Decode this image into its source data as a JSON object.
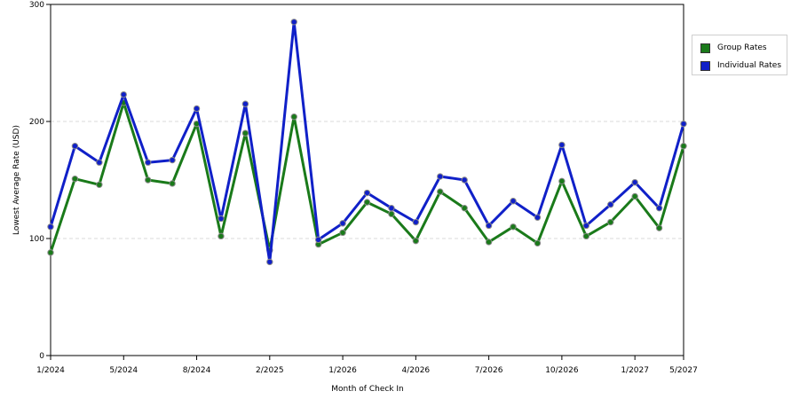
{
  "chart_data": {
    "type": "line",
    "xlabel": "Month of Check In",
    "ylabel": "Lowest Average Rate (USD)",
    "ylim": [
      0,
      300
    ],
    "yticks": [
      0,
      100,
      200,
      300
    ],
    "grid": true,
    "legend_position": "top-right",
    "x_tick_labels": [
      "1/2024",
      "5/2024",
      "8/2024",
      "2/2025",
      "1/2026",
      "4/2026",
      "7/2026",
      "10/2026",
      "1/2027",
      "5/2027"
    ],
    "x_tick_indices": [
      0,
      3,
      6,
      9,
      12,
      15,
      18,
      21,
      24,
      26
    ],
    "series": [
      {
        "name": "Group Rates",
        "color": "#1a7a1a",
        "values": [
          88,
          151,
          146,
          216,
          150,
          147,
          198,
          102,
          190,
          90,
          204,
          95,
          105,
          131,
          121,
          98,
          140,
          126,
          97,
          110,
          96,
          149,
          102,
          114,
          136,
          109,
          179
        ]
      },
      {
        "name": "Individual Rates",
        "color": "#1020c8",
        "values": [
          110,
          179,
          165,
          223,
          165,
          167,
          211,
          117,
          215,
          80,
          285,
          99,
          113,
          139,
          126,
          114,
          153,
          150,
          111,
          132,
          118,
          180,
          111,
          129,
          148,
          126,
          198
        ]
      }
    ]
  }
}
